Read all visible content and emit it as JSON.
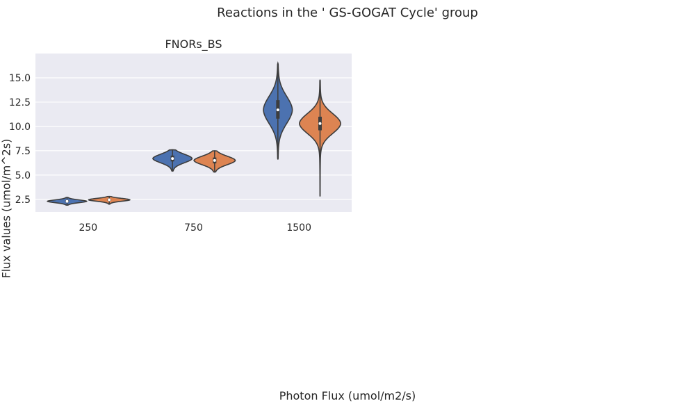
{
  "figure": {
    "suptitle": "Reactions in the ' GS-GOGAT Cycle' group",
    "xlabel": "Photon Flux (umol/m2/s)",
    "ylabel": "Flux values (umol/m^2s)"
  },
  "chart_data": {
    "type": "violin",
    "title": "FNORs_BS",
    "categories": [
      "250",
      "750",
      "1500"
    ],
    "ylim": [
      1.2,
      17.5
    ],
    "yticks": [
      2.5,
      5.0,
      7.5,
      10.0,
      12.5,
      15.0
    ],
    "ytick_labels": [
      "2.5",
      "5.0",
      "7.5",
      "10.0",
      "12.5",
      "15.0"
    ],
    "grid": true,
    "background": "#eaeaf2",
    "series": [
      {
        "color": "#4c72b0",
        "violins": [
          {
            "category": "250",
            "min": 1.9,
            "q1": 2.2,
            "median": 2.3,
            "q3": 2.4,
            "max": 2.7,
            "halfwidth": 0.95
          },
          {
            "category": "750",
            "min": 5.4,
            "q1": 6.4,
            "median": 6.7,
            "q3": 7.0,
            "max": 7.6,
            "halfwidth": 0.95
          },
          {
            "category": "1500",
            "min": 6.6,
            "q1": 10.8,
            "median": 11.7,
            "q3": 12.7,
            "max": 16.5,
            "halfwidth": 0.7
          }
        ]
      },
      {
        "color": "#dd8452",
        "violins": [
          {
            "category": "250",
            "min": 2.0,
            "q1": 2.35,
            "median": 2.45,
            "q3": 2.55,
            "max": 2.8,
            "halfwidth": 1.0
          },
          {
            "category": "750",
            "min": 5.3,
            "q1": 6.2,
            "median": 6.5,
            "q3": 6.8,
            "max": 7.5,
            "halfwidth": 1.0
          },
          {
            "category": "1500",
            "min": 2.8,
            "q1": 9.6,
            "median": 10.3,
            "q3": 11.0,
            "max": 14.8,
            "halfwidth": 1.0
          }
        ]
      }
    ]
  }
}
